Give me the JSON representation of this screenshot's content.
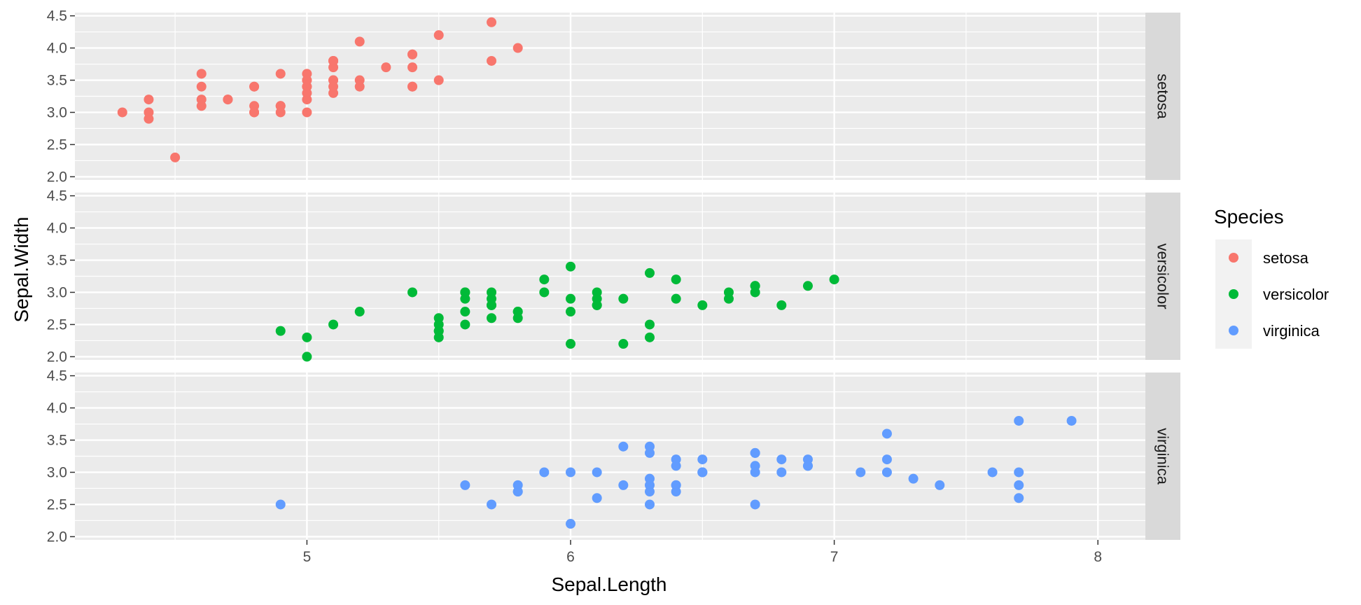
{
  "chart_data": {
    "type": "scatter",
    "xlabel": "Sepal.Length",
    "ylabel": "Sepal.Width",
    "xlim": [
      4.12,
      8.18
    ],
    "ylim": [
      1.95,
      4.55
    ],
    "xticks": [
      "5",
      "6",
      "7",
      "8"
    ],
    "yticks": [
      "2.0",
      "2.5",
      "3.0",
      "3.5",
      "4.0",
      "4.5"
    ],
    "facets": [
      "setosa",
      "versicolor",
      "virginica"
    ],
    "grid": true,
    "legend": {
      "title": "Species",
      "position": "right",
      "entries": [
        {
          "name": "setosa",
          "color": "#F8766D"
        },
        {
          "name": "versicolor",
          "color": "#00BA38"
        },
        {
          "name": "virginica",
          "color": "#619CFF"
        }
      ]
    },
    "series": [
      {
        "name": "setosa",
        "color": "#F8766D",
        "points": [
          [
            5.1,
            3.5
          ],
          [
            4.9,
            3.0
          ],
          [
            4.7,
            3.2
          ],
          [
            4.6,
            3.1
          ],
          [
            5.0,
            3.6
          ],
          [
            5.4,
            3.9
          ],
          [
            4.6,
            3.4
          ],
          [
            5.0,
            3.4
          ],
          [
            4.4,
            2.9
          ],
          [
            4.9,
            3.1
          ],
          [
            5.4,
            3.7
          ],
          [
            4.8,
            3.4
          ],
          [
            4.8,
            3.0
          ],
          [
            4.3,
            3.0
          ],
          [
            5.8,
            4.0
          ],
          [
            5.7,
            4.4
          ],
          [
            5.4,
            3.9
          ],
          [
            5.1,
            3.5
          ],
          [
            5.7,
            3.8
          ],
          [
            5.1,
            3.8
          ],
          [
            5.4,
            3.4
          ],
          [
            5.1,
            3.7
          ],
          [
            4.6,
            3.6
          ],
          [
            5.1,
            3.3
          ],
          [
            4.8,
            3.4
          ],
          [
            5.0,
            3.0
          ],
          [
            5.0,
            3.4
          ],
          [
            5.2,
            3.5
          ],
          [
            5.2,
            3.4
          ],
          [
            4.7,
            3.2
          ],
          [
            4.8,
            3.1
          ],
          [
            5.4,
            3.4
          ],
          [
            5.2,
            4.1
          ],
          [
            5.5,
            4.2
          ],
          [
            4.9,
            3.1
          ],
          [
            5.0,
            3.2
          ],
          [
            5.5,
            3.5
          ],
          [
            4.9,
            3.6
          ],
          [
            4.4,
            3.0
          ],
          [
            5.1,
            3.4
          ],
          [
            5.0,
            3.5
          ],
          [
            4.5,
            2.3
          ],
          [
            4.4,
            3.2
          ],
          [
            5.0,
            3.5
          ],
          [
            5.1,
            3.8
          ],
          [
            4.8,
            3.0
          ],
          [
            5.1,
            3.8
          ],
          [
            4.6,
            3.2
          ],
          [
            5.3,
            3.7
          ],
          [
            5.0,
            3.3
          ]
        ]
      },
      {
        "name": "versicolor",
        "color": "#00BA38",
        "points": [
          [
            7.0,
            3.2
          ],
          [
            6.4,
            3.2
          ],
          [
            6.9,
            3.1
          ],
          [
            5.5,
            2.3
          ],
          [
            6.5,
            2.8
          ],
          [
            5.7,
            2.8
          ],
          [
            6.3,
            3.3
          ],
          [
            4.9,
            2.4
          ],
          [
            6.6,
            2.9
          ],
          [
            5.2,
            2.7
          ],
          [
            5.0,
            2.0
          ],
          [
            5.9,
            3.0
          ],
          [
            6.0,
            2.2
          ],
          [
            6.1,
            2.9
          ],
          [
            5.6,
            2.9
          ],
          [
            6.7,
            3.1
          ],
          [
            5.6,
            3.0
          ],
          [
            5.8,
            2.7
          ],
          [
            6.2,
            2.2
          ],
          [
            5.6,
            2.5
          ],
          [
            5.9,
            3.2
          ],
          [
            6.1,
            2.8
          ],
          [
            6.3,
            2.5
          ],
          [
            6.1,
            2.8
          ],
          [
            6.4,
            2.9
          ],
          [
            6.6,
            3.0
          ],
          [
            6.8,
            2.8
          ],
          [
            6.7,
            3.0
          ],
          [
            6.0,
            2.9
          ],
          [
            5.7,
            2.6
          ],
          [
            5.5,
            2.4
          ],
          [
            5.5,
            2.4
          ],
          [
            5.8,
            2.7
          ],
          [
            6.0,
            2.7
          ],
          [
            5.4,
            3.0
          ],
          [
            6.0,
            3.4
          ],
          [
            6.7,
            3.1
          ],
          [
            6.3,
            2.3
          ],
          [
            5.6,
            3.0
          ],
          [
            5.5,
            2.5
          ],
          [
            5.5,
            2.6
          ],
          [
            6.1,
            3.0
          ],
          [
            5.8,
            2.6
          ],
          [
            5.0,
            2.3
          ],
          [
            5.6,
            2.7
          ],
          [
            5.7,
            3.0
          ],
          [
            5.7,
            2.9
          ],
          [
            6.2,
            2.9
          ],
          [
            5.1,
            2.5
          ],
          [
            5.7,
            2.8
          ]
        ]
      },
      {
        "name": "virginica",
        "color": "#619CFF",
        "points": [
          [
            6.3,
            3.3
          ],
          [
            5.8,
            2.7
          ],
          [
            7.1,
            3.0
          ],
          [
            6.3,
            2.9
          ],
          [
            6.5,
            3.0
          ],
          [
            7.6,
            3.0
          ],
          [
            4.9,
            2.5
          ],
          [
            7.3,
            2.9
          ],
          [
            6.7,
            2.5
          ],
          [
            7.2,
            3.6
          ],
          [
            6.5,
            3.2
          ],
          [
            6.4,
            2.7
          ],
          [
            6.8,
            3.0
          ],
          [
            5.7,
            2.5
          ],
          [
            5.8,
            2.8
          ],
          [
            6.4,
            3.2
          ],
          [
            6.5,
            3.0
          ],
          [
            7.7,
            3.8
          ],
          [
            7.7,
            2.6
          ],
          [
            6.0,
            2.2
          ],
          [
            6.9,
            3.2
          ],
          [
            5.6,
            2.8
          ],
          [
            7.7,
            2.8
          ],
          [
            6.3,
            2.7
          ],
          [
            6.7,
            3.3
          ],
          [
            7.2,
            3.2
          ],
          [
            6.2,
            2.8
          ],
          [
            6.1,
            3.0
          ],
          [
            6.4,
            2.8
          ],
          [
            7.2,
            3.0
          ],
          [
            7.4,
            2.8
          ],
          [
            7.9,
            3.8
          ],
          [
            6.4,
            2.8
          ],
          [
            6.3,
            2.8
          ],
          [
            6.1,
            2.6
          ],
          [
            7.7,
            3.0
          ],
          [
            6.3,
            3.4
          ],
          [
            6.4,
            3.1
          ],
          [
            6.0,
            3.0
          ],
          [
            6.9,
            3.1
          ],
          [
            6.7,
            3.1
          ],
          [
            6.9,
            3.1
          ],
          [
            5.8,
            2.7
          ],
          [
            6.8,
            3.2
          ],
          [
            6.7,
            3.3
          ],
          [
            6.7,
            3.0
          ],
          [
            6.3,
            2.5
          ],
          [
            6.5,
            3.0
          ],
          [
            6.2,
            3.4
          ],
          [
            5.9,
            3.0
          ]
        ]
      }
    ]
  }
}
